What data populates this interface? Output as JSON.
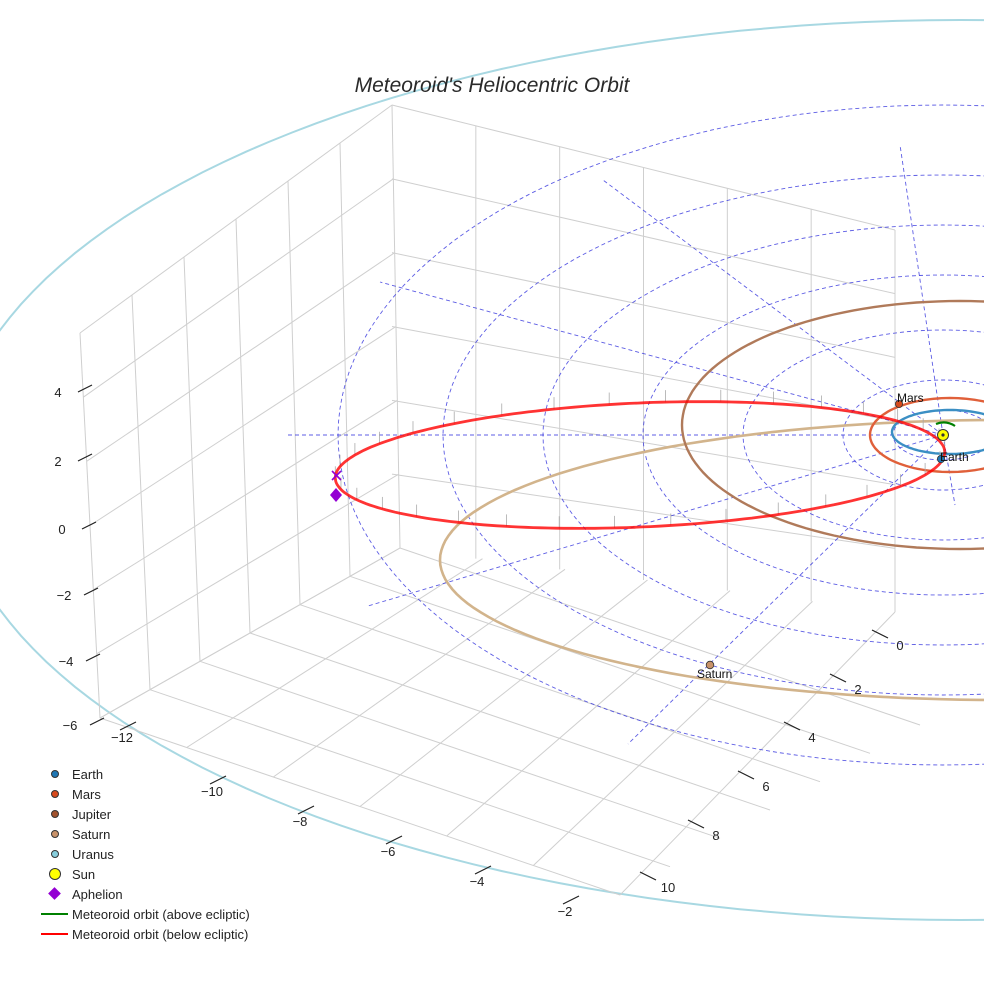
{
  "chart_data": {
    "type": "line",
    "title": "Meteoroid's Heliocentric Orbit",
    "xlabel": "",
    "ylabel": "",
    "zlabel": "",
    "x_ticks": [
      "−12",
      "−10",
      "−8",
      "−6",
      "−4",
      "−2"
    ],
    "y_ticks": [
      "0",
      "2",
      "4",
      "6",
      "8",
      "10"
    ],
    "z_ticks": [
      "4",
      "2",
      "0",
      "−2",
      "−4",
      "−6"
    ],
    "grid": true,
    "legend_position": "bottom-left",
    "legend": [
      {
        "label": "Earth",
        "symbol": "dot",
        "color": "#1f77b4"
      },
      {
        "label": "Mars",
        "symbol": "dot",
        "color": "#d64a1d"
      },
      {
        "label": "Jupiter",
        "symbol": "dot",
        "color": "#a0522d"
      },
      {
        "label": "Saturn",
        "symbol": "dot",
        "color": "#c8926a"
      },
      {
        "label": "Uranus",
        "symbol": "dot",
        "color": "#87cedc"
      },
      {
        "label": "Sun",
        "symbol": "big-dot",
        "color": "#ffff00"
      },
      {
        "label": "Aphelion",
        "symbol": "diamond",
        "color": "#9400d3"
      },
      {
        "label": "Meteoroid orbit (above ecliptic)",
        "symbol": "line",
        "color": "#008000"
      },
      {
        "label": "Meteoroid orbit (below ecliptic)",
        "symbol": "line",
        "color": "#ff0000"
      }
    ],
    "planet_labels": [
      {
        "name": "Mars",
        "color": "#d64a1d"
      },
      {
        "name": "Earth",
        "color": "#1f77b4"
      },
      {
        "name": "Saturn",
        "color": "#c8926a"
      }
    ],
    "orbit_colors": {
      "earth": "#3b8fc4",
      "mars": "#e0603a",
      "jupiter": "#b07a5a",
      "saturn": "#d2b48c",
      "uranus": "#a8d8e2",
      "meteoroid_below": "#ff0000",
      "meteoroid_above": "#008000",
      "reference_grid": "#3333dd"
    }
  }
}
